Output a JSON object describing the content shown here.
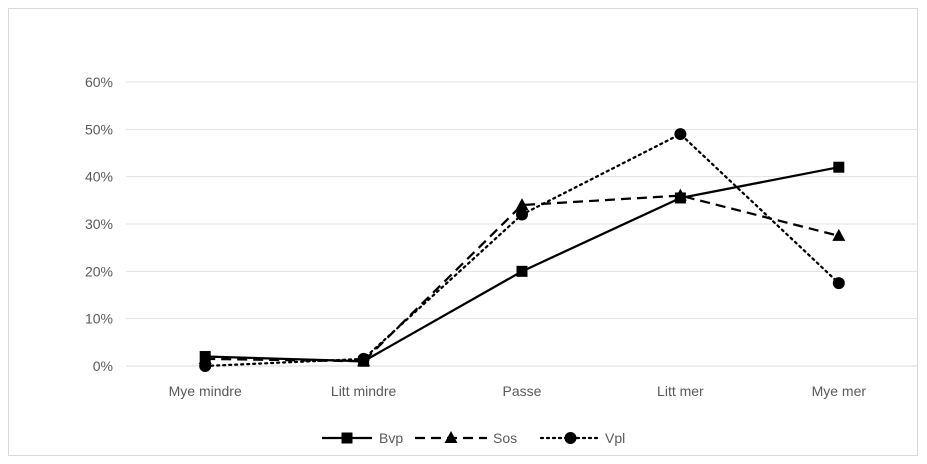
{
  "chart_data": {
    "type": "line",
    "title": "",
    "xlabel": "",
    "ylabel": "",
    "categories": [
      "Mye mindre",
      "Litt mindre",
      "Passe",
      "Litt mer",
      "Mye mer"
    ],
    "ylim": [
      0,
      60
    ],
    "yticks": [
      0,
      10,
      20,
      30,
      40,
      50,
      60
    ],
    "ytick_labels": [
      "0%",
      "10%",
      "20%",
      "30%",
      "40%",
      "50%",
      "60%"
    ],
    "grid": "horizontal",
    "legend_position": "bottom",
    "series": [
      {
        "name": "Bvp",
        "values": [
          2,
          1,
          20,
          35.5,
          42
        ],
        "marker": "square",
        "line_style": "solid",
        "color": "#000000"
      },
      {
        "name": "Sos",
        "values": [
          1.5,
          1,
          34,
          36,
          27.5
        ],
        "marker": "triangle",
        "line_style": "dashed",
        "color": "#000000"
      },
      {
        "name": "Vpl",
        "values": [
          0,
          1.5,
          32,
          49,
          17.5
        ],
        "marker": "circle",
        "line_style": "dotted",
        "color": "#000000"
      }
    ]
  }
}
